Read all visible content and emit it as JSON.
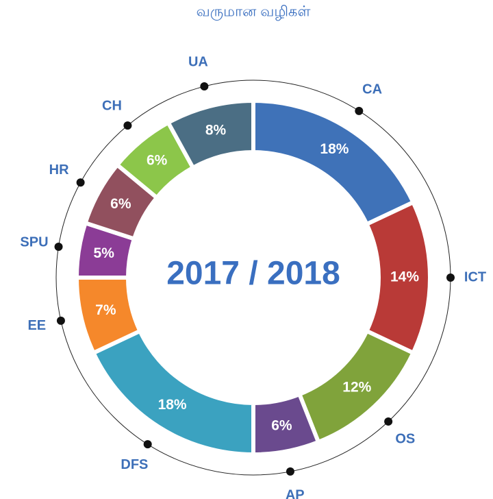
{
  "chart_data": {
    "type": "donut",
    "title": "வருமான வழிகள்",
    "center_label": "2017 / 2018",
    "categories": [
      "CA",
      "ICT",
      "OS",
      "AP",
      "DFS",
      "EE",
      "SPU",
      "HR",
      "CH",
      "UA"
    ],
    "values": [
      18,
      14,
      12,
      6,
      18,
      7,
      5,
      6,
      6,
      8
    ],
    "value_labels": [
      "18%",
      "14%",
      "12%",
      "6%",
      "18%",
      "7%",
      "5%",
      "6%",
      "6%",
      "8%"
    ],
    "colors": [
      "#3f72b8",
      "#b93a37",
      "#80a33b",
      "#6a4a8e",
      "#3ba2c0",
      "#f5882b",
      "#8b3c96",
      "#91505e",
      "#8cc64a",
      "#4b6e84"
    ]
  }
}
